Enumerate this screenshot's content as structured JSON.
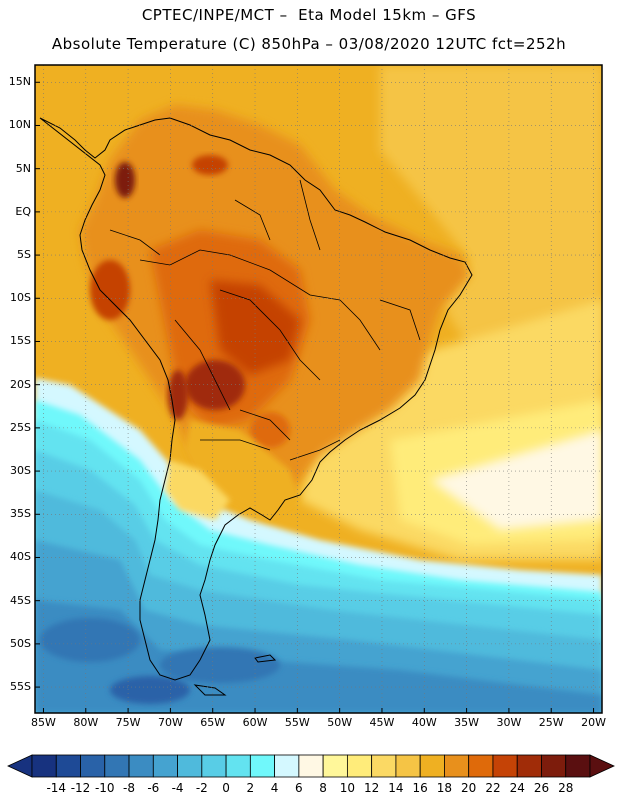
{
  "header": {
    "line1": "CPTEC/INPE/MCT –  Eta Model 15km – GFS",
    "line2": "Absolute Temperature (C) 850hPa – 03/08/2020 12UTC fct=252h"
  },
  "map": {
    "lat_labels": [
      "15N",
      "10N",
      "5N",
      "EQ",
      "5S",
      "10S",
      "15S",
      "20S",
      "25S",
      "30S",
      "35S",
      "40S",
      "45S",
      "50S",
      "55S"
    ],
    "lat_values": [
      15,
      10,
      5,
      0,
      -5,
      -10,
      -15,
      -20,
      -25,
      -30,
      -35,
      -40,
      -45,
      -50,
      -55
    ],
    "lon_labels": [
      "85W",
      "80W",
      "75W",
      "70W",
      "65W",
      "60W",
      "55W",
      "50W",
      "45W",
      "40W",
      "35W",
      "30W",
      "25W",
      "20W"
    ],
    "lon_values": [
      -85,
      -80,
      -75,
      -70,
      -65,
      -60,
      -55,
      -50,
      -45,
      -40,
      -35,
      -30,
      -25,
      -20
    ],
    "lat_range": [
      -58,
      17
    ],
    "lon_range": [
      -86,
      -19
    ]
  },
  "colorbar": {
    "labels": [
      "-14",
      "-12",
      "-10",
      "-8",
      "-6",
      "-4",
      "-2",
      "0",
      "2",
      "4",
      "6",
      "8",
      "10",
      "12",
      "14",
      "16",
      "18",
      "20",
      "22",
      "24",
      "26",
      "28"
    ],
    "colors": [
      "#17327f",
      "#1e4a96",
      "#2962a8",
      "#3276b4",
      "#3b8cc2",
      "#45a3d0",
      "#4fbadc",
      "#58cde6",
      "#63e3f0",
      "#70f8fb",
      "#d4f8ff",
      "#fff8e4",
      "#fff79a",
      "#ffec7a",
      "#fbd964",
      "#f5c445",
      "#efb022",
      "#e8901c",
      "#df6a0a",
      "#c54306",
      "#a02c08",
      "#7d1c0c",
      "#5a0f10"
    ]
  }
}
